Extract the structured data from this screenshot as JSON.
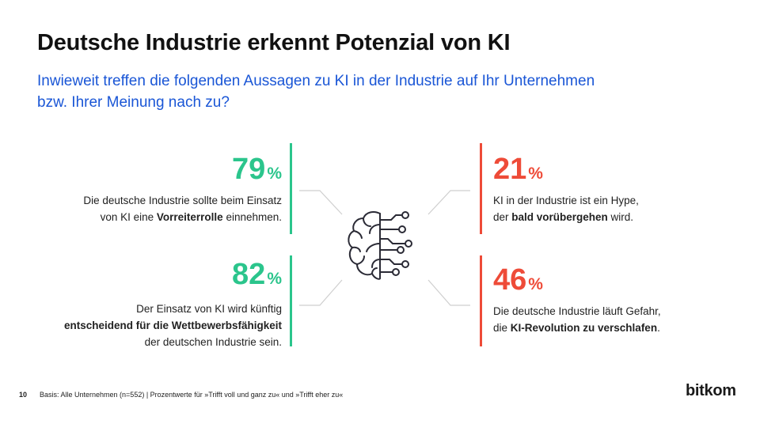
{
  "header": {
    "title": "Deutsche Industrie erkennt Potenzial von KI",
    "subtitle_line1": "Inwieweit treffen die folgenden Aussagen zu KI in der Industrie auf Ihr Unternehmen",
    "subtitle_line2": "bzw. Ihrer Meinung nach zu?"
  },
  "stats": {
    "vorreiter": {
      "value": "79",
      "unit": "%",
      "line1": "Die deutsche Industrie sollte beim Einsatz",
      "line2_pre": "von KI eine ",
      "line2_bold": "Vorreiterrolle",
      "line2_post": " einnehmen."
    },
    "wettbewerb": {
      "value": "82",
      "unit": "%",
      "line1": "Der Einsatz von KI wird künftig",
      "line2_bold": "entscheidend für die Wettbewerbsfähigkeit",
      "line3": "der deutschen Industrie sein."
    },
    "hype": {
      "value": "21",
      "unit": "%",
      "line1": "KI in der Industrie ist ein Hype,",
      "line2_pre": "der ",
      "line2_bold": "bald vorübergehen",
      "line2_post": " wird."
    },
    "revolution": {
      "value": "46",
      "unit": "%",
      "line1": "Die deutsche Industrie läuft Gefahr,",
      "line2_pre": "die ",
      "line2_bold": "KI-Revolution zu verschlafen",
      "line2_post": "."
    }
  },
  "colors": {
    "agree": "#2bc58c",
    "disagree": "#ee4b38",
    "subtitle": "#1a56d6"
  },
  "icons": {
    "center": "brain-circuit-icon"
  },
  "footer": {
    "page_number": "10",
    "note": "Basis: Alle Unternehmen (n=552) | Prozentwerte für »Trifft voll und ganz zu« und »Trifft eher zu«",
    "logo": "bitkom"
  }
}
